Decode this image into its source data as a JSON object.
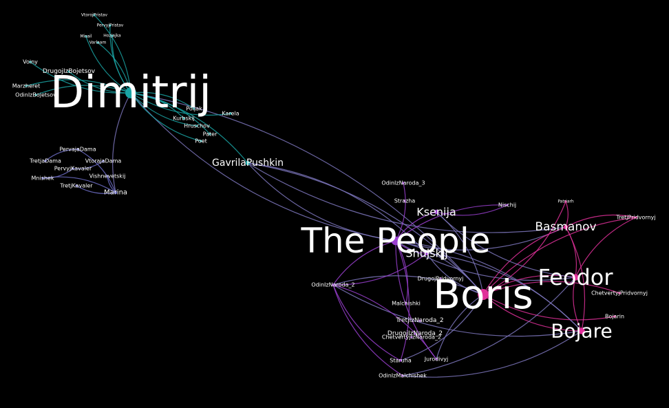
{
  "palette": {
    "background": "#000000",
    "cluster_dimitrij": "#1aa5a5",
    "cluster_court": "#6f6fc8",
    "cluster_people": "#9a3fd0",
    "cluster_boris": "#e0309a",
    "bridge": "#7f78c0",
    "label": "#ffffff"
  },
  "graph": {
    "nodes": [
      {
        "id": "dimitrij",
        "label": "Dimitrij",
        "group": "dimitrij",
        "weight": 5
      },
      {
        "id": "vtorojpristav",
        "label": "VtorojPristav",
        "group": "dimitrij",
        "weight": 1
      },
      {
        "id": "pervyjpristav",
        "label": "PervyjPristav",
        "group": "dimitrij",
        "weight": 1
      },
      {
        "id": "misail",
        "label": "Misail",
        "group": "dimitrij",
        "weight": 1
      },
      {
        "id": "hozjajka",
        "label": "Hozjajka",
        "group": "dimitrij",
        "weight": 1
      },
      {
        "id": "varlaam",
        "label": "Varlaam",
        "group": "dimitrij",
        "weight": 1
      },
      {
        "id": "voiny",
        "label": "Voiny",
        "group": "dimitrij",
        "weight": 1
      },
      {
        "id": "drugojizbojar",
        "label": "DrugojIzBojetsov",
        "group": "dimitrij",
        "weight": 1
      },
      {
        "id": "marzheret",
        "label": "Marzheret",
        "group": "dimitrij",
        "weight": 1
      },
      {
        "id": "odinizbojetsov",
        "label": "OdinIzBojetsov",
        "group": "dimitrij",
        "weight": 1
      },
      {
        "id": "polja",
        "label": "Poljak",
        "group": "dimitrij",
        "weight": 1
      },
      {
        "id": "karela",
        "label": "Karela",
        "group": "dimitrij",
        "weight": 1
      },
      {
        "id": "kurbskij",
        "label": "Kurbskij",
        "group": "dimitrij",
        "weight": 1
      },
      {
        "id": "hruschov",
        "label": "Hruschov",
        "group": "dimitrij",
        "weight": 1
      },
      {
        "id": "pater",
        "label": "Pater",
        "group": "dimitrij",
        "weight": 1
      },
      {
        "id": "poet",
        "label": "Poet",
        "group": "dimitrij",
        "weight": 1
      },
      {
        "id": "gavrila",
        "label": "GavrilaPushkin",
        "group": "dimitrij",
        "weight": 2
      },
      {
        "id": "pervajadama",
        "label": "PervajaDama",
        "group": "court",
        "weight": 1
      },
      {
        "id": "tretjadama",
        "label": "TretjaDama",
        "group": "court",
        "weight": 1
      },
      {
        "id": "vtorajadama",
        "label": "VtorajaDama",
        "group": "court",
        "weight": 1
      },
      {
        "id": "pervyjkavaler",
        "label": "PervyjKavaler",
        "group": "court",
        "weight": 1
      },
      {
        "id": "vishnevetskij",
        "label": "Vishnevetskij",
        "group": "court",
        "weight": 1
      },
      {
        "id": "mnishek",
        "label": "Mnishek",
        "group": "court",
        "weight": 1
      },
      {
        "id": "tretjkavaler",
        "label": "TretjKavaler",
        "group": "court",
        "weight": 1
      },
      {
        "id": "marina",
        "label": "Marina",
        "group": "court",
        "weight": 1.3
      },
      {
        "id": "people",
        "label": "The People",
        "group": "people",
        "weight": 4
      },
      {
        "id": "odinizn3",
        "label": "OdinIzNaroda_3",
        "group": "people",
        "weight": 1
      },
      {
        "id": "strazha",
        "label": "Strazha",
        "group": "people",
        "weight": 1
      },
      {
        "id": "kseniia",
        "label": "Ksenija",
        "group": "people",
        "weight": 2
      },
      {
        "id": "nischij",
        "label": "Nischij",
        "group": "people",
        "weight": 1
      },
      {
        "id": "shujskij",
        "label": "Shujskij",
        "group": "people",
        "weight": 2
      },
      {
        "id": "odinizn2",
        "label": "OdinIzNaroda_2",
        "group": "people",
        "weight": 1
      },
      {
        "id": "drugojpridvornyj",
        "label": "DrugojPridvornyj",
        "group": "people",
        "weight": 1
      },
      {
        "id": "malchishki",
        "label": "Malchishki",
        "group": "people",
        "weight": 1
      },
      {
        "id": "tretjizn2",
        "label": "TretjIzNaroda_2",
        "group": "people",
        "weight": 1
      },
      {
        "id": "drugojizn2",
        "label": "DrugojIzNaroda_2",
        "group": "people",
        "weight": 1
      },
      {
        "id": "chetvertyjizn2",
        "label": "ChetvertyjIzNaroda_2",
        "group": "people",
        "weight": 1
      },
      {
        "id": "staruha",
        "label": "Staruha",
        "group": "people",
        "weight": 1
      },
      {
        "id": "jurodivyj",
        "label": "Jurodivyj",
        "group": "people",
        "weight": 1
      },
      {
        "id": "odinizmalchishek",
        "label": "OdinIzMalchishek",
        "group": "people",
        "weight": 1
      },
      {
        "id": "boris",
        "label": "Boris",
        "group": "boris",
        "weight": 5
      },
      {
        "id": "basmanov",
        "label": "Basmanov",
        "group": "boris",
        "weight": 2
      },
      {
        "id": "feodor",
        "label": "Feodor",
        "group": "boris",
        "weight": 3
      },
      {
        "id": "bojare",
        "label": "Bojare",
        "group": "boris",
        "weight": 3
      },
      {
        "id": "patriarh",
        "label": "Patriarh",
        "group": "boris",
        "weight": 1
      },
      {
        "id": "tretjpridvornyj",
        "label": "TretjPridvornyj",
        "group": "boris",
        "weight": 1
      },
      {
        "id": "chetvertyjpridvornyj",
        "label": "ChetvertyjPridvornyj",
        "group": "boris",
        "weight": 1
      },
      {
        "id": "bojarin",
        "label": "Bojarin",
        "group": "boris",
        "weight": 1
      }
    ]
  }
}
